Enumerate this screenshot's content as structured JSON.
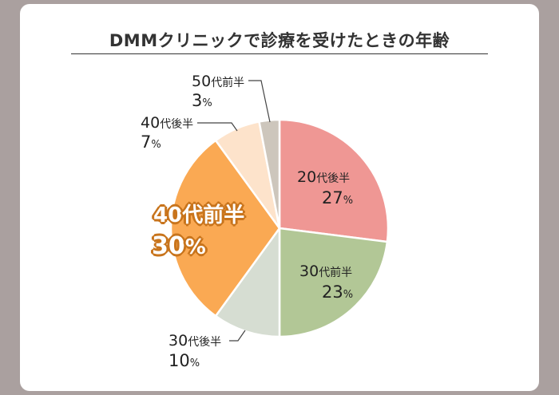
{
  "chart_data": {
    "type": "pie",
    "title": "DMMクリニックで診療を受けたときの年齢",
    "categories": [
      "20代後半",
      "30代前半",
      "30代後半",
      "40代前半",
      "40代後半",
      "50代前半"
    ],
    "values": [
      27,
      23,
      10,
      30,
      7,
      3
    ],
    "unit": "%",
    "colors": [
      "#ef9794",
      "#b2c796",
      "#d6ddd2",
      "#faa953",
      "#fde3cb",
      "#cdc6bc"
    ],
    "start_angle": "12 o'clock",
    "direction": "clockwise",
    "highlighted": "40代前半",
    "legend": "none (direct labels)"
  },
  "labels": {
    "s20late": {
      "num": "20",
      "kanji": "代後半",
      "pct_num": "27",
      "pct": "%"
    },
    "s30early": {
      "num": "30",
      "kanji": "代前半",
      "pct_num": "23",
      "pct": "%"
    },
    "s30late": {
      "num": "30",
      "kanji": "代後半",
      "pct_num": "10",
      "pct": "%"
    },
    "s40early": {
      "num": "40",
      "kanji": "代前半",
      "pct_num": "30",
      "pct": "%"
    },
    "s40late": {
      "num": "40",
      "kanji": "代後半",
      "pct_num": "7",
      "pct": "%"
    },
    "s50early": {
      "num": "50",
      "kanji": "代前半",
      "pct_num": "3",
      "pct": "%"
    }
  },
  "colors": {
    "background": "#aaa09f",
    "card": "#ffffff",
    "text": "#222222",
    "highlight_stroke": "#c8741c"
  }
}
